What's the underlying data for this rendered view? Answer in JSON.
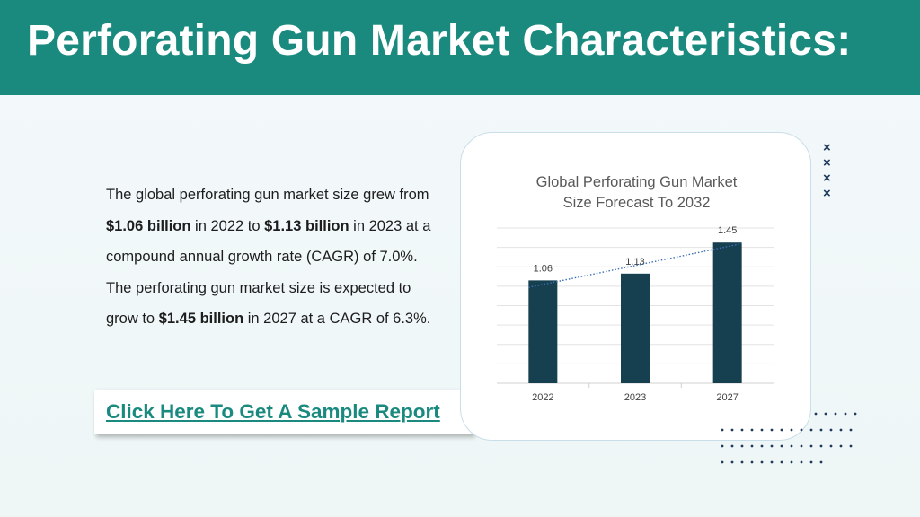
{
  "header": {
    "title": "Perforating Gun Market Characteristics:"
  },
  "body": {
    "p1": "The global perforating gun market size grew from ",
    "v1": "$1.06 billion",
    "p2": " in 2022 to ",
    "v2": "$1.13 billion",
    "p3": " in 2023 at a compound annual growth rate (CAGR) of 7.0%. The perforating gun market size is expected to grow to ",
    "v3": "$1.45 billion",
    "p4": " in 2027 at a CAGR of 6.3%."
  },
  "cta": {
    "label": "Click Here To Get A Sample Report"
  },
  "decor": {
    "x_mark": "×"
  },
  "colors": {
    "header": "#1a8a7f",
    "bar": "#163f4f",
    "trend": "#3d6fb6",
    "accent_text": "#1a8a7f"
  },
  "chart_data": {
    "type": "bar",
    "title_line1": "Global Perforating Gun Market",
    "title_line2": "Size Forecast To 2032",
    "categories": [
      "2022",
      "2023",
      "2027"
    ],
    "values": [
      1.06,
      1.13,
      1.45
    ],
    "data_labels": [
      "1.06",
      "1.13",
      "1.45"
    ],
    "ylim": [
      0,
      1.6
    ],
    "grid": true,
    "trendline": "linear, dotted",
    "legend": "none"
  }
}
